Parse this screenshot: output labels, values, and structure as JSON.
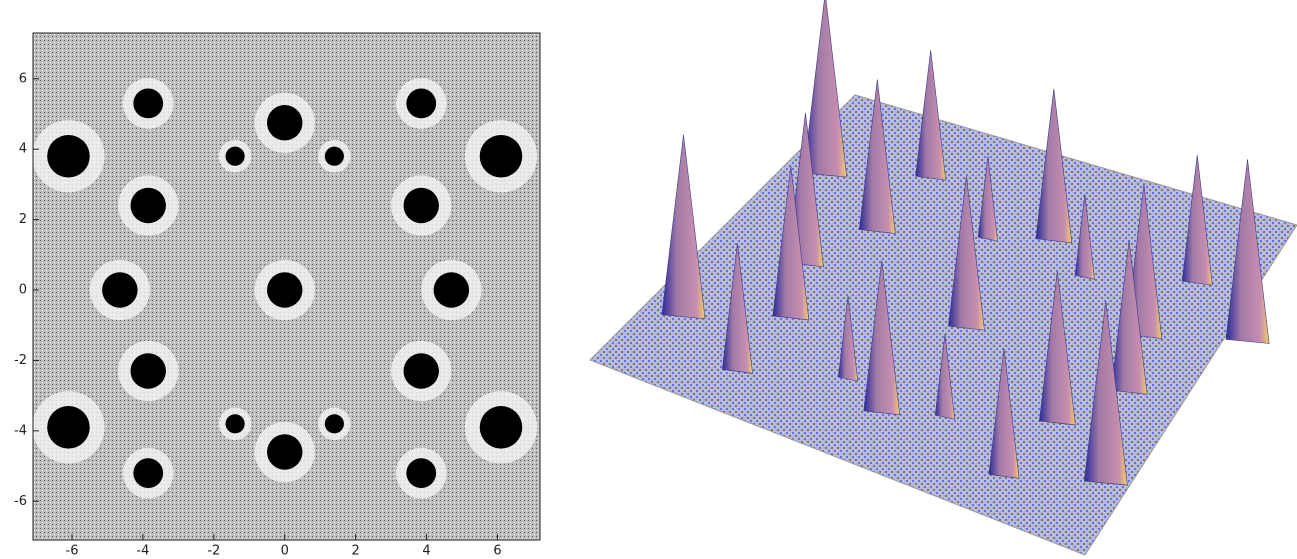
{
  "chart_data": {
    "type": "contour",
    "xlim": [
      -7.1,
      7.2
    ],
    "ylim": [
      -7.1,
      7.3
    ],
    "xticks": [
      -6,
      -4,
      -2,
      0,
      2,
      4,
      6
    ],
    "yticks": [
      -6,
      -4,
      -2,
      0,
      2,
      4,
      6
    ],
    "x": [
      0,
      0,
      0,
      -4.65,
      4.7,
      -6.1,
      6.1,
      -6.1,
      6.1,
      -3.85,
      3.85,
      -3.85,
      3.85,
      -3.85,
      3.85,
      -3.85,
      3.85,
      -1.4,
      1.4,
      -1.4,
      1.4
    ],
    "y": [
      0,
      4.75,
      -4.6,
      0,
      0,
      3.8,
      3.8,
      -3.9,
      -3.9,
      2.4,
      2.4,
      -2.3,
      -2.3,
      5.3,
      5.3,
      -5.2,
      -5.2,
      3.8,
      3.8,
      -3.8,
      -3.8
    ],
    "size": [
      0.5,
      0.5,
      0.5,
      0.5,
      0.5,
      0.6,
      0.6,
      0.6,
      0.6,
      0.5,
      0.5,
      0.5,
      0.5,
      0.42,
      0.42,
      0.42,
      0.42,
      0.27,
      0.27,
      0.27,
      0.27
    ]
  }
}
